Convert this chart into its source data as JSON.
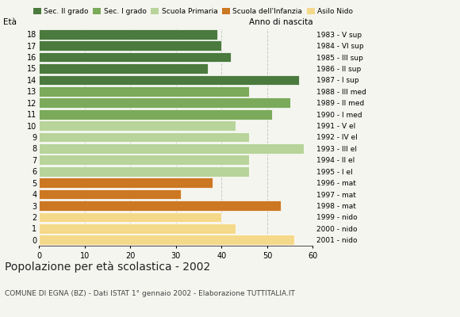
{
  "ages": [
    18,
    17,
    16,
    15,
    14,
    13,
    12,
    11,
    10,
    9,
    8,
    7,
    6,
    5,
    4,
    3,
    2,
    1,
    0
  ],
  "values": [
    39,
    40,
    42,
    37,
    57,
    46,
    55,
    51,
    43,
    46,
    58,
    46,
    46,
    38,
    31,
    53,
    40,
    43,
    56
  ],
  "colors": [
    "#4a7a3d",
    "#4a7a3d",
    "#4a7a3d",
    "#4a7a3d",
    "#4a7a3d",
    "#7aaa5a",
    "#7aaa5a",
    "#7aaa5a",
    "#b8d49a",
    "#b8d49a",
    "#b8d49a",
    "#b8d49a",
    "#b8d49a",
    "#cc7722",
    "#cc7722",
    "#cc7722",
    "#f5d98a",
    "#f5d98a",
    "#f5d98a"
  ],
  "right_labels": [
    "1983 - V sup",
    "1984 - VI sup",
    "1985 - III sup",
    "1986 - II sup",
    "1987 - I sup",
    "1988 - III med",
    "1989 - II med",
    "1990 - I med",
    "1991 - V el",
    "1992 - IV el",
    "1993 - III el",
    "1994 - II el",
    "1995 - I el",
    "1996 - mat",
    "1997 - mat",
    "1998 - mat",
    "1999 - nido",
    "2000 - nido",
    "2001 - nido"
  ],
  "legend_labels": [
    "Sec. II grado",
    "Sec. I grado",
    "Scuola Primaria",
    "Scuola dell'Infanzia",
    "Asilo Nido"
  ],
  "legend_colors": [
    "#4a7a3d",
    "#7aaa5a",
    "#b8d49a",
    "#cc7722",
    "#f5d98a"
  ],
  "title": "Popolazione per età scolastica - 2002",
  "subtitle": "COMUNE DI EGNA (BZ) - Dati ISTAT 1° gennaio 2002 - Elaborazione TUTTITALIA.IT",
  "ylabel_left": "Età",
  "ylabel_right": "Anno di nascita",
  "xlim": [
    0,
    60
  ],
  "xticks": [
    0,
    10,
    20,
    30,
    40,
    50,
    60
  ],
  "bg_color": "#f5f5f0",
  "grid_color": "#c8c8c8"
}
